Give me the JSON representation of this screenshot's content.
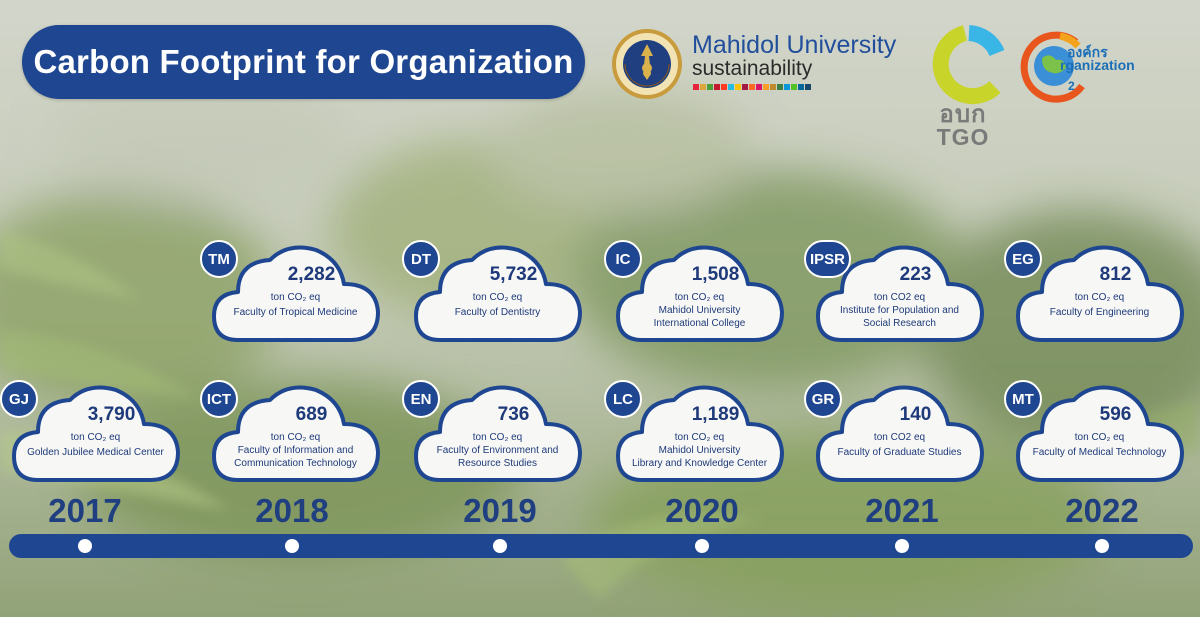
{
  "title": "Carbon Footprint for Organization",
  "logos": {
    "mahidol_name": "Mahidol University",
    "mahidol_sub": "sustainability",
    "tgo_thai": "อบก",
    "tgo_en": "TGO",
    "co2_thai": "องค์กร",
    "co2_en": "rganization"
  },
  "colors": {
    "primary": "#1f4690",
    "sdg": [
      "#e5243b",
      "#dda63a",
      "#4c9f38",
      "#c5192d",
      "#ff3a21",
      "#26bde2",
      "#fcc30b",
      "#a21942",
      "#fd6925",
      "#dd1367",
      "#fd9d24",
      "#bf8b2e",
      "#3f7e44",
      "#0a97d9",
      "#56c02b",
      "#00689d",
      "#19486a"
    ]
  },
  "years": [
    "2017",
    "2018",
    "2019",
    "2020",
    "2021",
    "2022"
  ],
  "clouds": [
    {
      "code": "TM",
      "value": "2,282",
      "unit": "ton CO₂ eq",
      "desc": [
        "Faculty of Tropical Medicine"
      ]
    },
    {
      "code": "DT",
      "value": "5,732",
      "unit": "ton CO₂ eq",
      "desc": [
        "Faculty of Dentistry"
      ]
    },
    {
      "code": "IC",
      "value": "1,508",
      "unit": "ton CO₂ eq",
      "desc": [
        "Mahidol University",
        "International College"
      ]
    },
    {
      "code": "IPSR",
      "value": "223",
      "unit": "ton CO2 eq",
      "desc": [
        "Institute for Population and",
        "Social Research"
      ]
    },
    {
      "code": "EG",
      "value": "812",
      "unit": "ton CO₂ eq",
      "desc": [
        "Faculty of Engineering"
      ]
    },
    {
      "code": "GJ",
      "value": "3,790",
      "unit": "ton CO₂ eq",
      "desc": [
        "Golden Jubilee Medical Center"
      ]
    },
    {
      "code": "ICT",
      "value": "689",
      "unit": "ton CO₂ eq",
      "desc": [
        "Faculty of Information and",
        "Communication Technology"
      ]
    },
    {
      "code": "EN",
      "value": "736",
      "unit": "ton CO₂ eq",
      "desc": [
        "Faculty of Environment and",
        "Resource Studies"
      ]
    },
    {
      "code": "LC",
      "value": "1,189",
      "unit": "ton CO₂ eq",
      "desc": [
        "Mahidol University",
        "Library and Knowledge Center"
      ]
    },
    {
      "code": "GR",
      "value": "140",
      "unit": "ton CO2 eq",
      "desc": [
        "Faculty of Graduate Studies"
      ]
    },
    {
      "code": "MT",
      "value": "596",
      "unit": "ton CO₂ eq",
      "desc": [
        "Faculty of Medical Technology"
      ]
    }
  ]
}
